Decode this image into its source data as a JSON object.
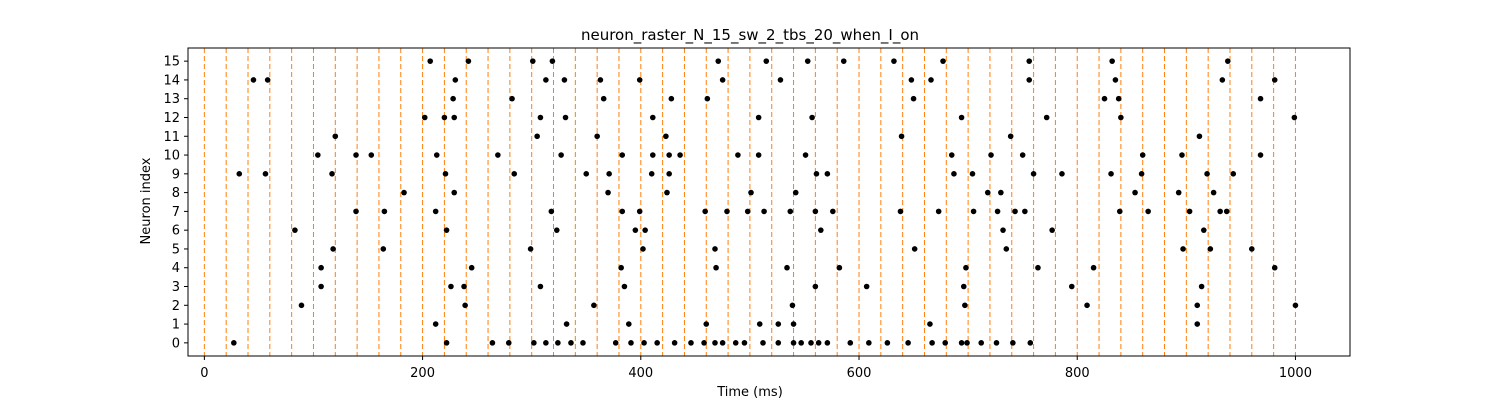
{
  "chart_data": {
    "type": "scatter",
    "title": "neuron_raster_N_15_sw_2_tbs_20_when_I_on",
    "xlabel": "Time (ms)",
    "ylabel": "Neuron index",
    "xlim": [
      -15,
      1050
    ],
    "ylim": [
      -0.7,
      15.7
    ],
    "xticks": [
      0,
      200,
      400,
      600,
      800,
      1000
    ],
    "yticks": [
      0,
      1,
      2,
      3,
      4,
      5,
      6,
      7,
      8,
      9,
      10,
      11,
      12,
      13,
      14,
      15
    ],
    "grid": false,
    "marker_color": "#000000",
    "vline_color": "#ff7f0e",
    "vlines_x": [
      0,
      20,
      40,
      60,
      80,
      100,
      120,
      140,
      160,
      180,
      200,
      220,
      240,
      260,
      280,
      300,
      320,
      340,
      360,
      380,
      400,
      420,
      440,
      460,
      480,
      500,
      520,
      540,
      560,
      580,
      600,
      620,
      640,
      660,
      680,
      700,
      720,
      740,
      760,
      780,
      800,
      820,
      840,
      860,
      880,
      900,
      920,
      940,
      960,
      980,
      1000
    ],
    "spikes": [
      [
        27,
        0
      ],
      [
        222,
        0
      ],
      [
        264,
        0
      ],
      [
        279,
        0
      ],
      [
        302,
        0
      ],
      [
        313,
        0
      ],
      [
        324,
        0
      ],
      [
        336,
        0
      ],
      [
        347,
        0
      ],
      [
        377,
        0
      ],
      [
        391,
        0
      ],
      [
        403,
        0
      ],
      [
        415,
        0
      ],
      [
        431,
        0
      ],
      [
        446,
        0
      ],
      [
        458,
        0
      ],
      [
        468,
        0
      ],
      [
        475,
        0
      ],
      [
        487,
        0
      ],
      [
        495,
        0
      ],
      [
        512,
        0
      ],
      [
        526,
        0
      ],
      [
        540,
        0
      ],
      [
        547,
        0
      ],
      [
        556,
        0
      ],
      [
        563,
        0
      ],
      [
        571,
        0
      ],
      [
        592,
        0
      ],
      [
        609,
        0
      ],
      [
        626,
        0
      ],
      [
        645,
        0
      ],
      [
        667,
        0
      ],
      [
        679,
        0
      ],
      [
        694,
        0
      ],
      [
        699,
        0
      ],
      [
        712,
        0
      ],
      [
        726,
        0
      ],
      [
        741,
        0
      ],
      [
        757,
        0
      ],
      [
        212,
        1
      ],
      [
        332,
        1
      ],
      [
        389,
        1
      ],
      [
        460,
        1
      ],
      [
        509,
        1
      ],
      [
        526,
        1
      ],
      [
        540,
        1
      ],
      [
        665,
        1
      ],
      [
        910,
        1
      ],
      [
        89,
        2
      ],
      [
        357,
        2
      ],
      [
        239,
        2
      ],
      [
        539,
        2
      ],
      [
        697,
        2
      ],
      [
        809,
        2
      ],
      [
        910,
        2
      ],
      [
        1000,
        2
      ],
      [
        107,
        3
      ],
      [
        226,
        3
      ],
      [
        238,
        3
      ],
      [
        308,
        3
      ],
      [
        385,
        3
      ],
      [
        560,
        3
      ],
      [
        607,
        3
      ],
      [
        696,
        3
      ],
      [
        795,
        3
      ],
      [
        914,
        3
      ],
      [
        107,
        4
      ],
      [
        245,
        4
      ],
      [
        382,
        4
      ],
      [
        469,
        4
      ],
      [
        534,
        4
      ],
      [
        582,
        4
      ],
      [
        698,
        4
      ],
      [
        764,
        4
      ],
      [
        815,
        4
      ],
      [
        981,
        4
      ],
      [
        118,
        5
      ],
      [
        164,
        5
      ],
      [
        299,
        5
      ],
      [
        402,
        5
      ],
      [
        468,
        5
      ],
      [
        651,
        5
      ],
      [
        735,
        5
      ],
      [
        897,
        5
      ],
      [
        922,
        5
      ],
      [
        960,
        5
      ],
      [
        83,
        6
      ],
      [
        222,
        6
      ],
      [
        323,
        6
      ],
      [
        395,
        6
      ],
      [
        404,
        6
      ],
      [
        565,
        6
      ],
      [
        732,
        6
      ],
      [
        777,
        6
      ],
      [
        916,
        6
      ],
      [
        139,
        7
      ],
      [
        165,
        7
      ],
      [
        212,
        7
      ],
      [
        318,
        7
      ],
      [
        383,
        7
      ],
      [
        399,
        7
      ],
      [
        459,
        7
      ],
      [
        479,
        7
      ],
      [
        498,
        7
      ],
      [
        513,
        7
      ],
      [
        537,
        7
      ],
      [
        560,
        7
      ],
      [
        576,
        7
      ],
      [
        638,
        7
      ],
      [
        673,
        7
      ],
      [
        705,
        7
      ],
      [
        727,
        7
      ],
      [
        743,
        7
      ],
      [
        752,
        7
      ],
      [
        839,
        7
      ],
      [
        865,
        7
      ],
      [
        903,
        7
      ],
      [
        931,
        7
      ],
      [
        937,
        7
      ],
      [
        183,
        8
      ],
      [
        229,
        8
      ],
      [
        370,
        8
      ],
      [
        424,
        8
      ],
      [
        501,
        8
      ],
      [
        542,
        8
      ],
      [
        718,
        8
      ],
      [
        730,
        8
      ],
      [
        853,
        8
      ],
      [
        893,
        8
      ],
      [
        925,
        8
      ],
      [
        32,
        9
      ],
      [
        56,
        9
      ],
      [
        117,
        9
      ],
      [
        221,
        9
      ],
      [
        284,
        9
      ],
      [
        350,
        9
      ],
      [
        371,
        9
      ],
      [
        410,
        9
      ],
      [
        426,
        9
      ],
      [
        561,
        9
      ],
      [
        571,
        9
      ],
      [
        687,
        9
      ],
      [
        704,
        9
      ],
      [
        760,
        9
      ],
      [
        786,
        9
      ],
      [
        831,
        9
      ],
      [
        859,
        9
      ],
      [
        919,
        9
      ],
      [
        943,
        9
      ],
      [
        104,
        10
      ],
      [
        139,
        10
      ],
      [
        153,
        10
      ],
      [
        213,
        10
      ],
      [
        269,
        10
      ],
      [
        327,
        10
      ],
      [
        383,
        10
      ],
      [
        411,
        10
      ],
      [
        426,
        10
      ],
      [
        436,
        10
      ],
      [
        489,
        10
      ],
      [
        508,
        10
      ],
      [
        551,
        10
      ],
      [
        685,
        10
      ],
      [
        721,
        10
      ],
      [
        750,
        10
      ],
      [
        860,
        10
      ],
      [
        896,
        10
      ],
      [
        968,
        10
      ],
      [
        120,
        11
      ],
      [
        305,
        11
      ],
      [
        360,
        11
      ],
      [
        423,
        11
      ],
      [
        639,
        11
      ],
      [
        739,
        11
      ],
      [
        912,
        11
      ],
      [
        202,
        12
      ],
      [
        220,
        12
      ],
      [
        229,
        12
      ],
      [
        308,
        12
      ],
      [
        331,
        12
      ],
      [
        411,
        12
      ],
      [
        508,
        12
      ],
      [
        557,
        12
      ],
      [
        694,
        12
      ],
      [
        772,
        12
      ],
      [
        840,
        12
      ],
      [
        999,
        12
      ],
      [
        228,
        13
      ],
      [
        282,
        13
      ],
      [
        366,
        13
      ],
      [
        428,
        13
      ],
      [
        461,
        13
      ],
      [
        650,
        13
      ],
      [
        825,
        13
      ],
      [
        838,
        13
      ],
      [
        968,
        13
      ],
      [
        45,
        14
      ],
      [
        58,
        14
      ],
      [
        230,
        14
      ],
      [
        313,
        14
      ],
      [
        330,
        14
      ],
      [
        363,
        14
      ],
      [
        399,
        14
      ],
      [
        475,
        14
      ],
      [
        528,
        14
      ],
      [
        648,
        14
      ],
      [
        666,
        14
      ],
      [
        756,
        14
      ],
      [
        835,
        14
      ],
      [
        933,
        14
      ],
      [
        981,
        14
      ],
      [
        207,
        15
      ],
      [
        242,
        15
      ],
      [
        301,
        15
      ],
      [
        319,
        15
      ],
      [
        471,
        15
      ],
      [
        515,
        15
      ],
      [
        553,
        15
      ],
      [
        586,
        15
      ],
      [
        632,
        15
      ],
      [
        677,
        15
      ],
      [
        756,
        15
      ],
      [
        832,
        15
      ],
      [
        938,
        15
      ]
    ]
  }
}
